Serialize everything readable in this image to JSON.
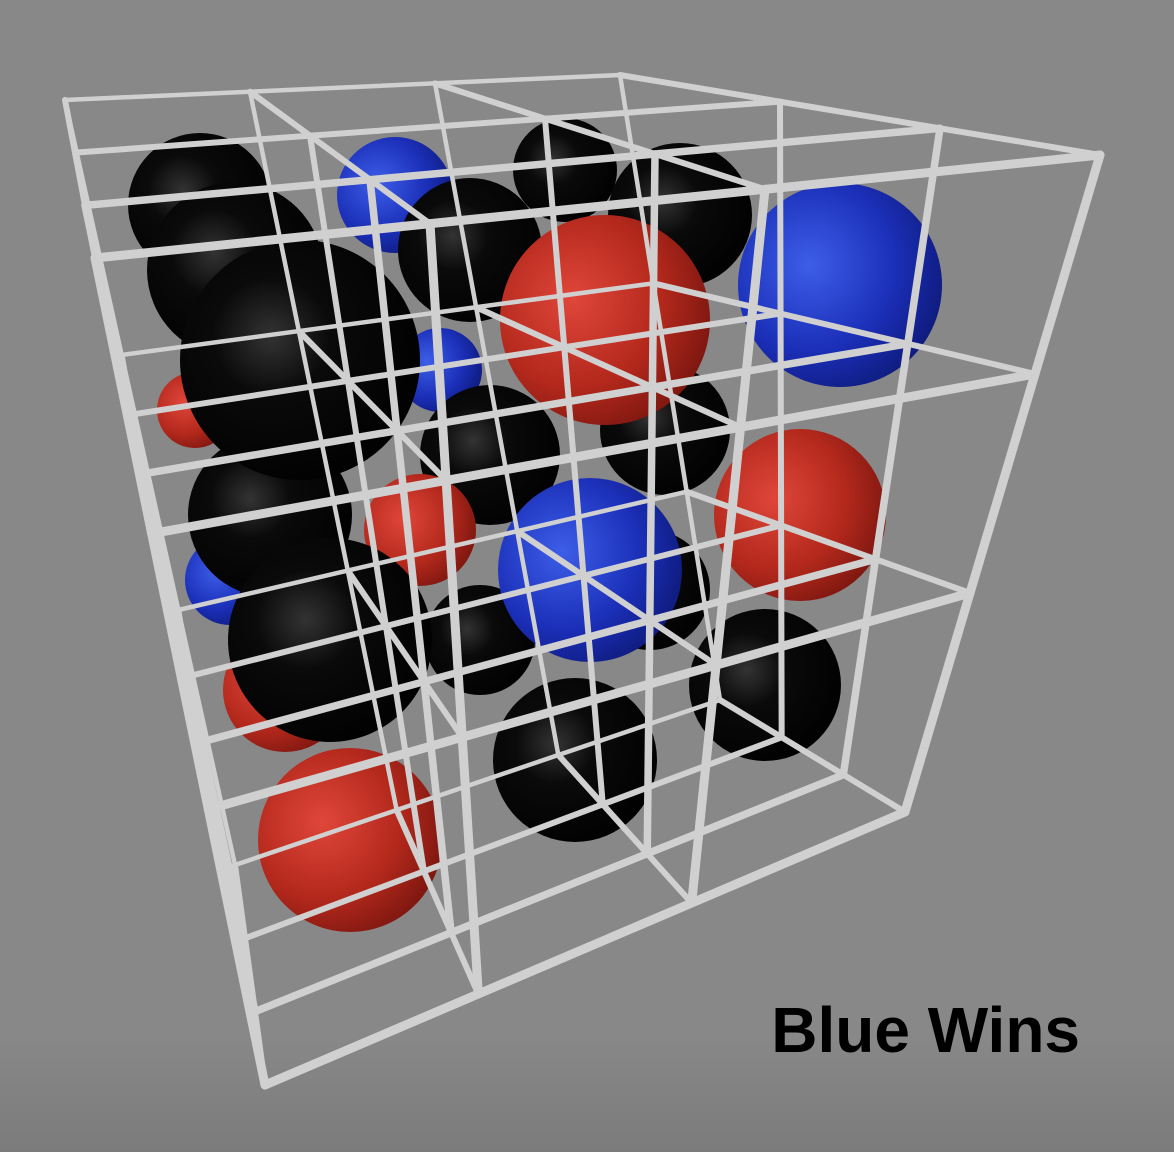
{
  "status": "Blue Wins"
}
